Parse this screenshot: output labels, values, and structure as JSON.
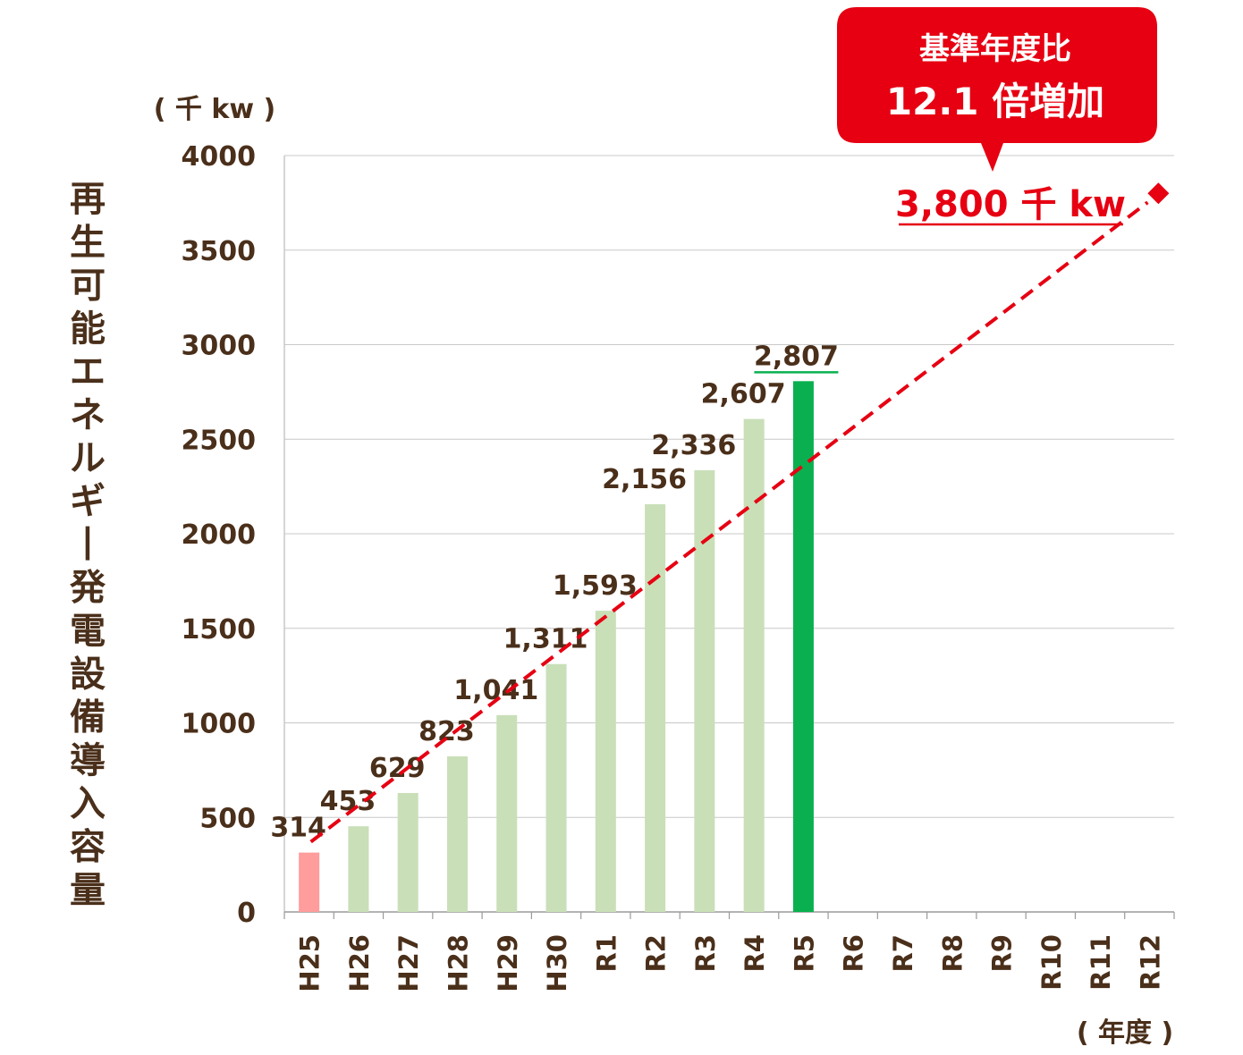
{
  "chart_data": {
    "type": "bar",
    "y_unit": "( 千 kw )",
    "x_unit": "( 年度 )",
    "ylabel": "再生可能エネルギー発電設備導入容量",
    "ylim": [
      0,
      4000
    ],
    "yticks": [
      "4000",
      "3500",
      "3000",
      "2500",
      "2000",
      "1500",
      "1000",
      "500",
      "0"
    ],
    "grid": true,
    "categories": [
      "H25",
      "H26",
      "H27",
      "H28",
      "H29",
      "H30",
      "R1",
      "R2",
      "R3",
      "R4",
      "R5",
      "R6",
      "R7",
      "R8",
      "R9",
      "R10",
      "R11",
      "R12"
    ],
    "values": [
      314,
      453,
      629,
      823,
      1041,
      1311,
      1593,
      2156,
      2336,
      2607,
      2807,
      null,
      null,
      null,
      null,
      null,
      null,
      null
    ],
    "value_labels": [
      "314",
      "453",
      "629",
      "823",
      "1,041",
      "1,311",
      "1,593",
      "2,156",
      "2,336",
      "2,607",
      "2,807",
      "",
      "",
      "",
      "",
      "",
      "",
      ""
    ],
    "bar_colors": [
      "#ff9c9c",
      "#c9dfb8",
      "#c9dfb8",
      "#c9dfb8",
      "#c9dfb8",
      "#c9dfb8",
      "#c9dfb8",
      "#c9dfb8",
      "#c9dfb8",
      "#c9dfb8",
      "#0ab04f"
    ],
    "highlight_label_color": "#0ab04f",
    "target_line": {
      "from": {
        "category": "H25",
        "value": 314
      },
      "to": {
        "category": "R12",
        "value": 3800
      },
      "style": "dashed",
      "color": "#e60012",
      "end_marker": "diamond",
      "label": "3,800 千 kw"
    },
    "callout": {
      "line1": "基準年度比",
      "line2": "12.1 倍増加",
      "color": "#e60012"
    }
  }
}
